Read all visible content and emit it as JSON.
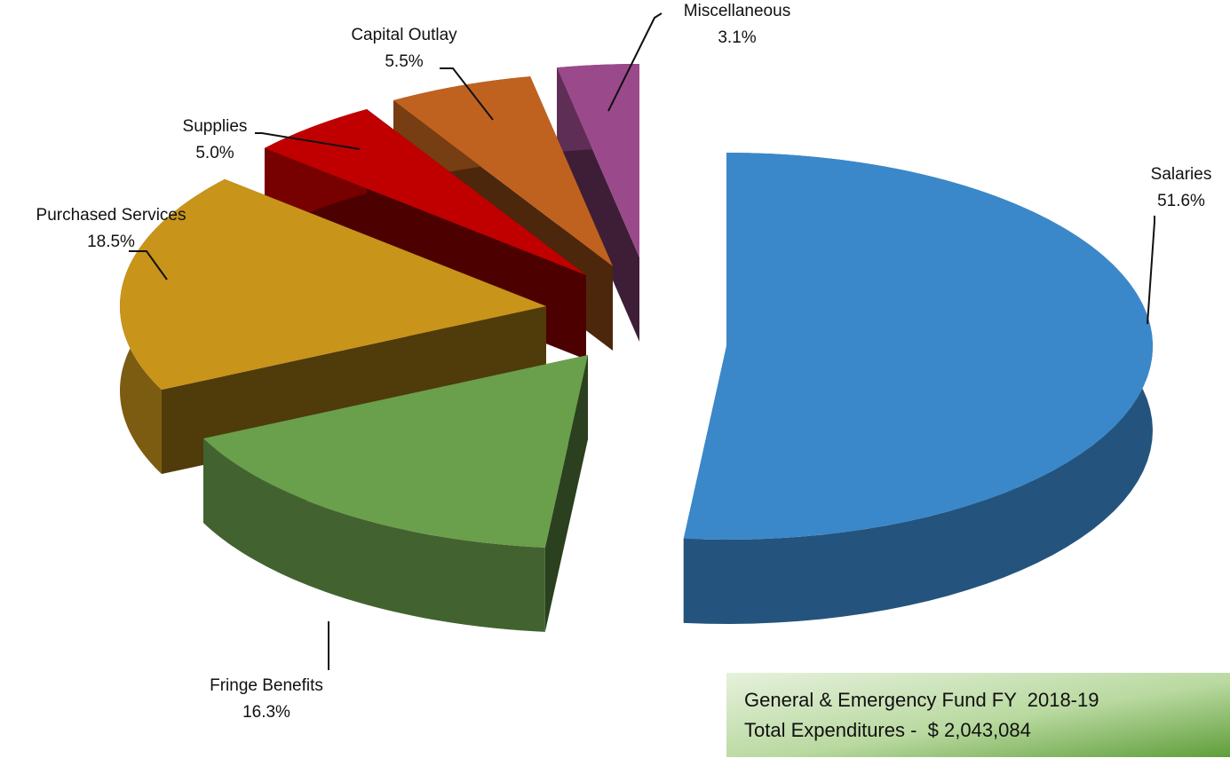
{
  "chart_data": {
    "type": "pie",
    "categories": [
      "Salaries",
      "Fringe Benefits",
      "Purchased Services",
      "Supplies",
      "Capital Outlay",
      "Miscellaneous"
    ],
    "values": [
      51.6,
      16.3,
      18.5,
      5.0,
      5.5,
      3.1
    ],
    "value_labels": [
      "51.6%",
      "16.3%",
      "18.5%",
      "5.0%",
      "5.5%",
      "3.1%"
    ],
    "colors": [
      "#3a88c9",
      "#6a9f4b",
      "#c8941a",
      "#c00000",
      "#c0621f",
      "#9a4a8a"
    ],
    "annotations": [
      "General & Emergency Fund FY  2018-19",
      "Total Expenditures -  $ 2,043,084"
    ]
  }
}
